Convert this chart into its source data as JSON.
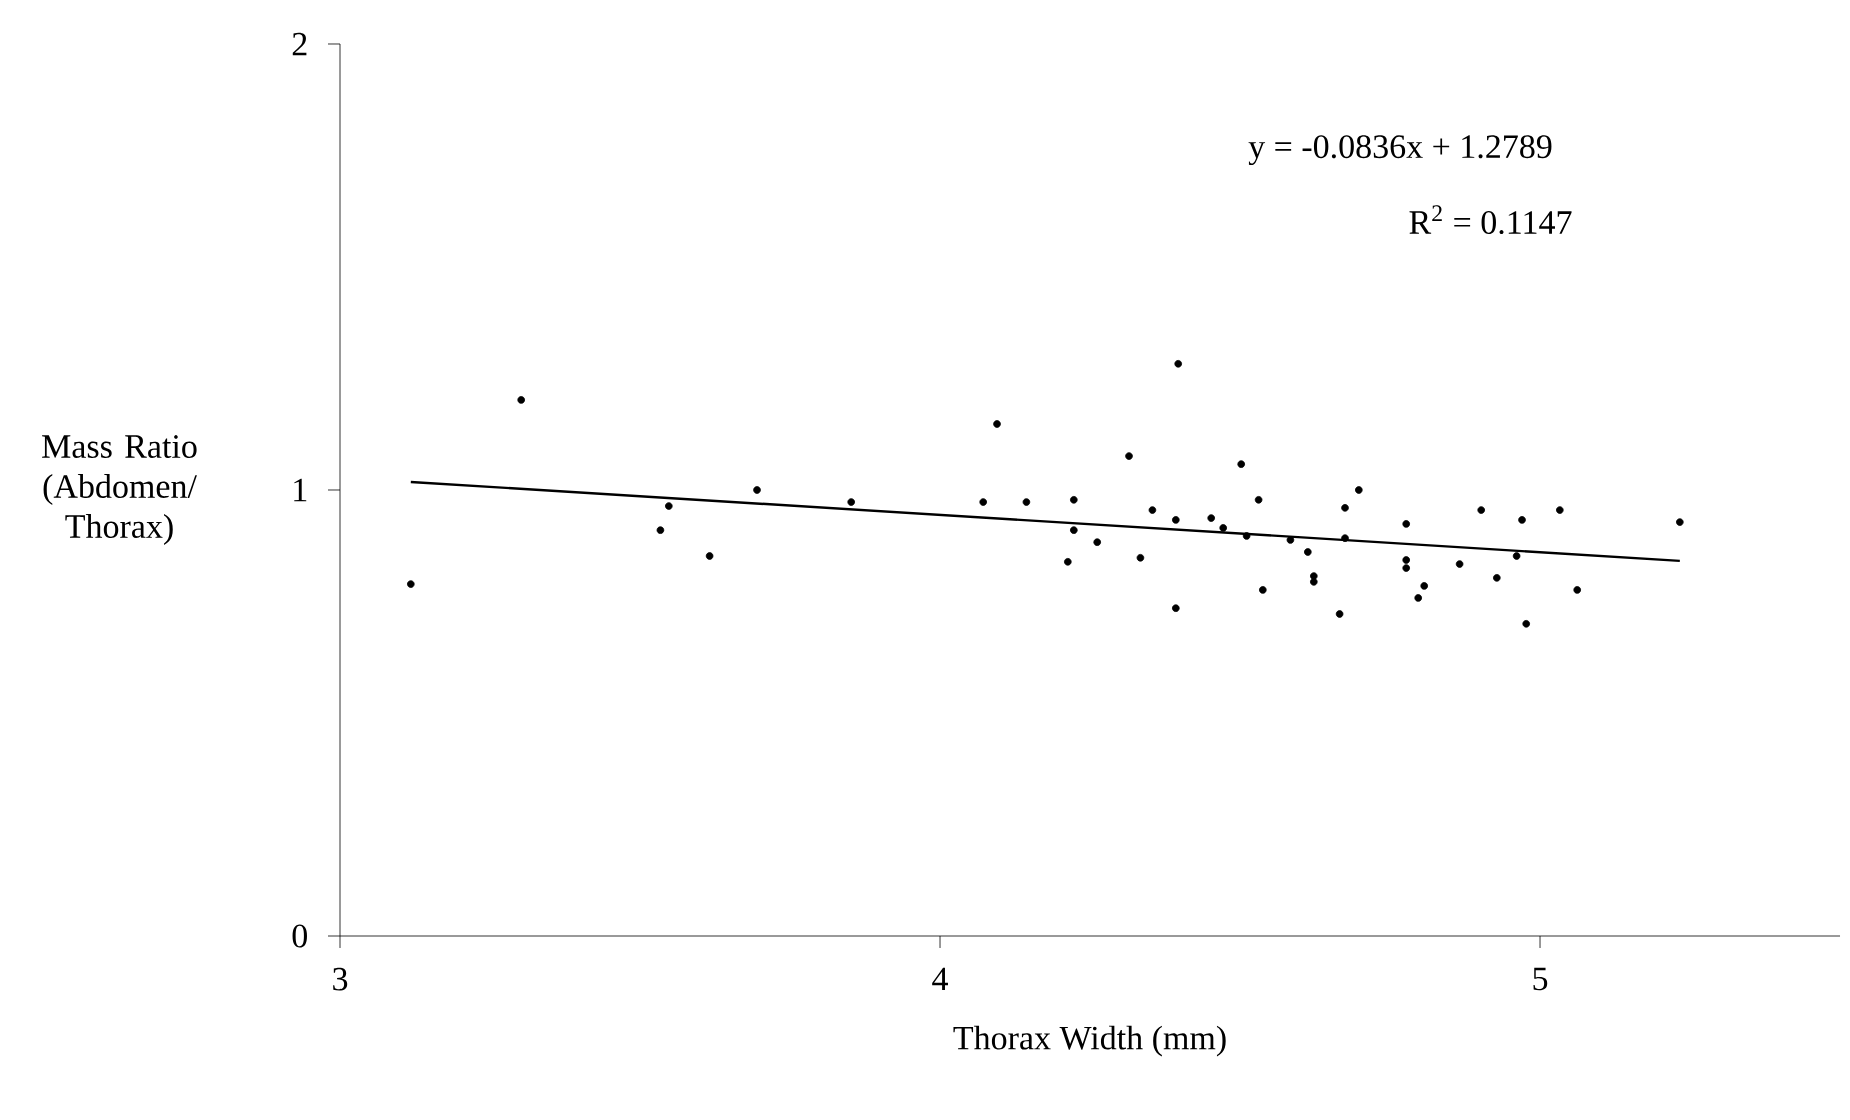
{
  "chart_data": {
    "type": "scatter",
    "xlabel": "Thorax Width (mm)",
    "ylabel": "Mass Ratio (Abdomen/ Thorax)",
    "annotations": [
      "y = -0.0836x + 1.2789",
      "R$^{2}$ = 0.1147"
    ],
    "xlim": [
      3,
      5.5
    ],
    "ylim": [
      0,
      2
    ],
    "xticks": [
      3,
      4,
      5
    ],
    "yticks": [
      0,
      1,
      2
    ],
    "marker": "circle",
    "series": [
      {
        "color": "#000000",
        "x": [
          3.118,
          3.302,
          3.548,
          3.534,
          3.695,
          3.616,
          3.852,
          4.072,
          4.095,
          4.144,
          4.223,
          4.223,
          4.213,
          4.262,
          4.315,
          4.334,
          4.354,
          4.397,
          4.393,
          4.393,
          4.452,
          4.472,
          4.502,
          4.511,
          4.531,
          4.538,
          4.584,
          4.613,
          4.623,
          4.623,
          4.666,
          4.675,
          4.698,
          4.675,
          4.777,
          4.777,
          4.777,
          4.807,
          4.797,
          4.866,
          4.902,
          4.928,
          4.961,
          4.97,
          4.977,
          5.033,
          5.062,
          5.233
        ],
        "values": [
          0.789,
          1.202,
          0.964,
          0.91,
          1.0,
          0.852,
          0.973,
          0.973,
          1.148,
          0.973,
          0.978,
          0.91,
          0.839,
          0.883,
          1.076,
          0.848,
          0.955,
          1.283,
          0.933,
          0.735,
          0.937,
          0.915,
          1.058,
          0.897,
          0.978,
          0.776,
          0.888,
          0.861,
          0.807,
          0.794,
          0.722,
          0.96,
          1.0,
          0.892,
          0.924,
          0.843,
          0.825,
          0.785,
          0.758,
          0.834,
          0.955,
          0.803,
          0.852,
          0.933,
          0.7,
          0.955,
          0.776,
          0.928
        ]
      },
      {
        "type": "line",
        "color": "#000000",
        "marker": "none",
        "x": [
          3.118,
          5.233
        ],
        "values": [
          1.018,
          0.841
        ]
      }
    ]
  }
}
